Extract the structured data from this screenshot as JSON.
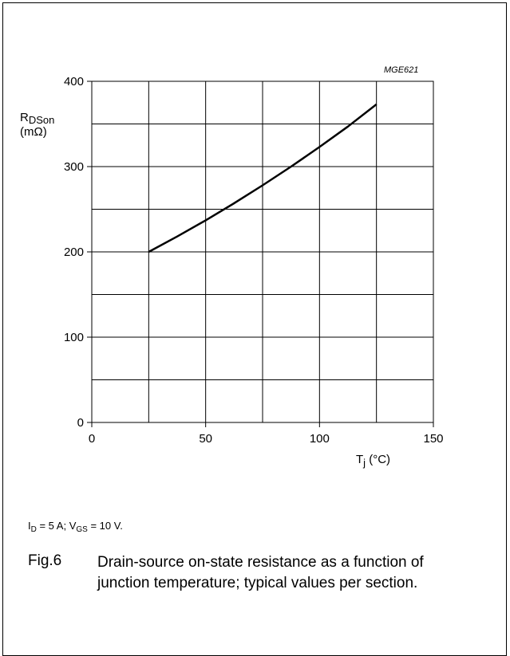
{
  "chart_data": {
    "type": "line",
    "code": "MGE621",
    "ylabel_main": "R",
    "ylabel_sub": "DSon",
    "ylabel_unit": "(mΩ)",
    "xlabel_main": "T",
    "xlabel_sub": "j",
    "xlabel_unit": " (°C)",
    "xlim": [
      0,
      150
    ],
    "ylim": [
      0,
      400
    ],
    "xticks": [
      0,
      50,
      100,
      150
    ],
    "yticks": [
      0,
      100,
      200,
      300,
      400
    ],
    "x_grid_step": 25,
    "y_grid_step": 50,
    "grid": true,
    "series": [
      {
        "x": [
          25,
          37.5,
          50,
          62.5,
          75,
          87.5,
          100,
          112.5,
          125
        ],
        "y": [
          200,
          218,
          237,
          257,
          278,
          300,
          323,
          347,
          373
        ]
      }
    ]
  },
  "conditions": {
    "id_main": "I",
    "id_sub": "D",
    "id_rest": " = 5 A; V",
    "vgs_sub": "GS",
    "vgs_rest": " = 10 V."
  },
  "caption": {
    "fig": "Fig.6",
    "text": "Drain-source on-state resistance as a function of junction temperature; typical values per section."
  }
}
